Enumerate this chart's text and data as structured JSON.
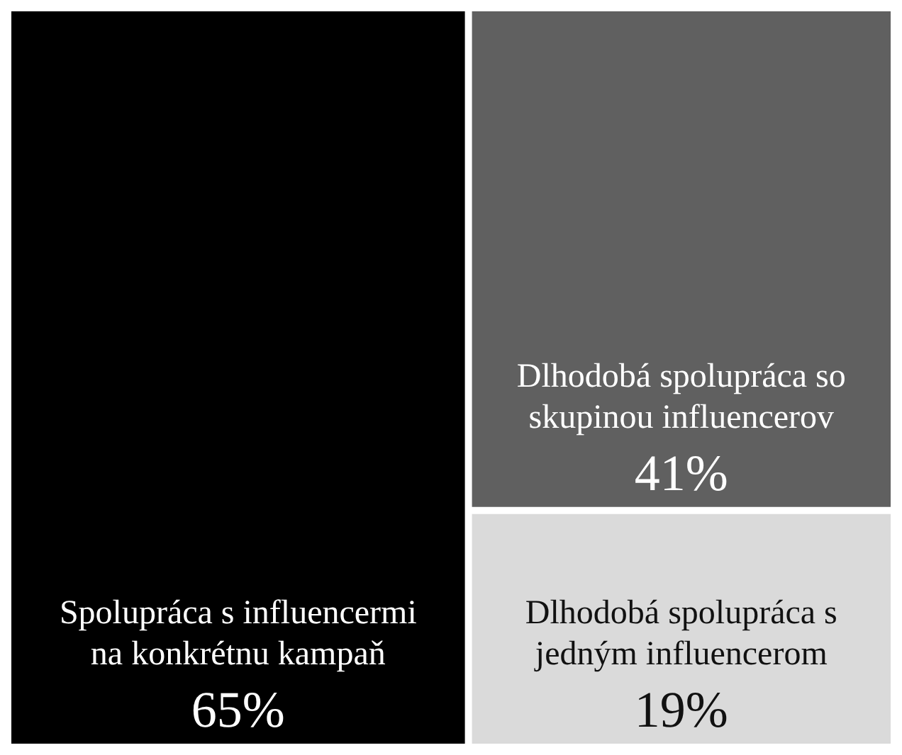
{
  "chart_data": {
    "type": "other",
    "categories": [
      "Spolupráca s influencermi na konkrétnu kampaň",
      "Dlhodobá spolupráca so skupinou influencerov",
      "Dlhodobá spolupráca s jedným influencerom"
    ],
    "values": [
      65,
      41,
      19
    ],
    "colors": [
      "#000000",
      "#606060",
      "#dadada"
    ],
    "value_labels": [
      "65%",
      "41%",
      "19%"
    ]
  }
}
